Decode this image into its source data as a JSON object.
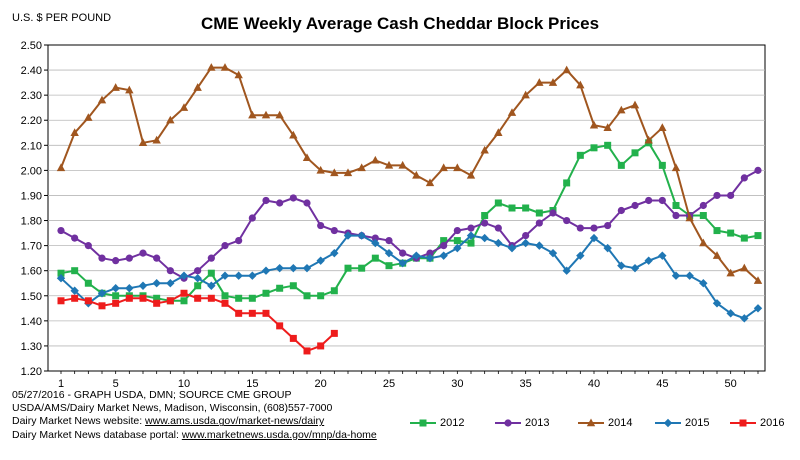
{
  "chart_data": {
    "type": "line",
    "title": "CME Weekly Average Cash Cheddar Block Prices",
    "ylabel": "U.S. $ PER POUND",
    "xlabel": "",
    "ylim": [
      1.2,
      2.5
    ],
    "xlim": [
      1,
      52
    ],
    "x_ticks": [
      1,
      5,
      10,
      15,
      20,
      25,
      30,
      35,
      40,
      45,
      50
    ],
    "y_ticks": [
      "1.20",
      "1.30",
      "1.40",
      "1.50",
      "1.60",
      "1.70",
      "1.80",
      "1.90",
      "2.00",
      "2.10",
      "2.20",
      "2.30",
      "2.40",
      "2.50"
    ],
    "grid": true,
    "legend_position": "bottom",
    "series": [
      {
        "name": "2012",
        "color": "#22b14c",
        "marker": "square",
        "values": [
          1.59,
          1.6,
          1.55,
          1.51,
          1.5,
          1.5,
          1.5,
          1.49,
          1.48,
          1.48,
          1.54,
          1.59,
          1.5,
          1.49,
          1.49,
          1.51,
          1.53,
          1.54,
          1.5,
          1.5,
          1.52,
          1.61,
          1.61,
          1.65,
          1.62,
          1.63,
          1.65,
          1.65,
          1.72,
          1.72,
          1.71,
          1.82,
          1.87,
          1.85,
          1.85,
          1.83,
          1.84,
          1.95,
          2.06,
          2.09,
          2.1,
          2.02,
          2.07,
          2.11,
          2.02,
          1.86,
          1.82,
          1.82,
          1.76,
          1.75,
          1.73,
          1.74
        ]
      },
      {
        "name": "2013",
        "color": "#7030a0",
        "marker": "circle",
        "values": [
          1.76,
          1.73,
          1.7,
          1.65,
          1.64,
          1.65,
          1.67,
          1.65,
          1.6,
          1.57,
          1.6,
          1.65,
          1.7,
          1.72,
          1.81,
          1.88,
          1.87,
          1.89,
          1.87,
          1.78,
          1.76,
          1.75,
          1.74,
          1.73,
          1.72,
          1.67,
          1.65,
          1.67,
          1.7,
          1.76,
          1.77,
          1.79,
          1.77,
          1.7,
          1.74,
          1.79,
          1.83,
          1.8,
          1.77,
          1.77,
          1.78,
          1.84,
          1.86,
          1.88,
          1.88,
          1.82,
          1.82,
          1.86,
          1.9,
          1.9,
          1.97,
          2.0
        ]
      },
      {
        "name": "2014",
        "color": "#a0561f",
        "marker": "triangle",
        "values": [
          2.01,
          2.15,
          2.21,
          2.28,
          2.33,
          2.32,
          2.11,
          2.12,
          2.2,
          2.25,
          2.33,
          2.41,
          2.41,
          2.38,
          2.22,
          2.22,
          2.22,
          2.14,
          2.05,
          2.0,
          1.99,
          1.99,
          2.01,
          2.04,
          2.02,
          2.02,
          1.98,
          1.95,
          2.01,
          2.01,
          1.98,
          2.08,
          2.15,
          2.23,
          2.3,
          2.35,
          2.35,
          2.4,
          2.34,
          2.18,
          2.17,
          2.24,
          2.26,
          2.12,
          2.17,
          2.01,
          1.81,
          1.71,
          1.66,
          1.59,
          1.61,
          1.56
        ]
      },
      {
        "name": "2015",
        "color": "#1f77b4",
        "marker": "diamond",
        "values": [
          1.57,
          1.52,
          1.47,
          1.51,
          1.53,
          1.53,
          1.54,
          1.55,
          1.55,
          1.58,
          1.57,
          1.54,
          1.58,
          1.58,
          1.58,
          1.6,
          1.61,
          1.61,
          1.61,
          1.64,
          1.67,
          1.74,
          1.74,
          1.71,
          1.67,
          1.63,
          1.66,
          1.65,
          1.66,
          1.69,
          1.74,
          1.73,
          1.71,
          1.69,
          1.71,
          1.7,
          1.67,
          1.6,
          1.66,
          1.73,
          1.69,
          1.62,
          1.61,
          1.64,
          1.66,
          1.58,
          1.58,
          1.55,
          1.47,
          1.43,
          1.41,
          1.45
        ]
      },
      {
        "name": "2016",
        "color": "#ee1c1c",
        "marker": "square",
        "values": [
          1.48,
          1.49,
          1.48,
          1.46,
          1.47,
          1.49,
          1.49,
          1.47,
          1.48,
          1.51,
          1.49,
          1.49,
          1.47,
          1.43,
          1.43,
          1.43,
          1.38,
          1.33,
          1.28,
          1.3,
          1.35
        ]
      }
    ]
  },
  "footer": {
    "line1": "05/27/2016  -  GRAPH USDA, DMN; SOURCE CME GROUP",
    "line2": "USDA/AMS/Dairy Market News, Madison, Wisconsin, (608)557-7000",
    "line3_prefix": "Dairy Market News website: ",
    "line3_link": "www.ams.usda.gov/market-news/dairy",
    "line4_prefix": "Dairy Market News database portal: ",
    "line4_link": "www.marketnews.usda.gov/mnp/da-home"
  }
}
